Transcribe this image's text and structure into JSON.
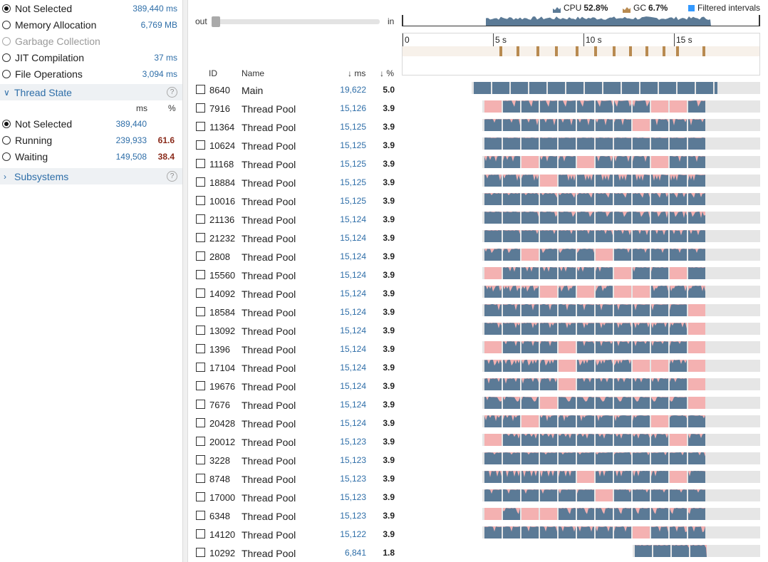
{
  "filters_top": [
    {
      "label": "Not Selected",
      "value": "389,440 ms",
      "checked": true,
      "disabled": false
    },
    {
      "label": "Memory Allocation",
      "value": "6,769 MB",
      "checked": false,
      "disabled": false
    },
    {
      "label": "Garbage Collection",
      "value": "",
      "checked": false,
      "disabled": true
    },
    {
      "label": "JIT Compilation",
      "value": "37 ms",
      "checked": false,
      "disabled": false
    },
    {
      "label": "File Operations",
      "value": "3,094 ms",
      "checked": false,
      "disabled": false
    }
  ],
  "thread_state": {
    "title": "Thread State",
    "help": "?",
    "col_ms": "ms",
    "col_pct": "%",
    "items": [
      {
        "label": "Not Selected",
        "ms": "389,440",
        "pct": "",
        "checked": true
      },
      {
        "label": "Running",
        "ms": "239,933",
        "pct": "61.6",
        "checked": false
      },
      {
        "label": "Waiting",
        "ms": "149,508",
        "pct": "38.4",
        "checked": false
      }
    ]
  },
  "subsystems": {
    "title": "Subsystems",
    "help": "?"
  },
  "zoom": {
    "out_label": "out",
    "in_label": "in"
  },
  "legend": {
    "cpu_label": "CPU",
    "cpu_value": "52.8%",
    "cpu_color": "#5b7a96",
    "gc_label": "GC",
    "gc_value": "6.7%",
    "gc_color": "#b88a50",
    "filtered_label": "Filtered intervals",
    "filtered_color": "#3399ff"
  },
  "ruler_ticks": [
    "0",
    "5 s",
    "10 s",
    "15 s"
  ],
  "table_headers": {
    "id": "ID",
    "name": "Name",
    "ms": "↓ ms",
    "pct": "↓ %"
  },
  "threads": [
    {
      "id": "8640",
      "name": "Main",
      "ms": "19,622",
      "pct": "5.0",
      "start": 0.2,
      "end": 0.88
    },
    {
      "id": "7916",
      "name": "Thread Pool",
      "ms": "15,126",
      "pct": "3.9",
      "start": 0.23,
      "end": 0.85
    },
    {
      "id": "11364",
      "name": "Thread Pool",
      "ms": "15,125",
      "pct": "3.9",
      "start": 0.23,
      "end": 0.85
    },
    {
      "id": "10624",
      "name": "Thread Pool",
      "ms": "15,125",
      "pct": "3.9",
      "start": 0.23,
      "end": 0.85
    },
    {
      "id": "11168",
      "name": "Thread Pool",
      "ms": "15,125",
      "pct": "3.9",
      "start": 0.23,
      "end": 0.85
    },
    {
      "id": "18884",
      "name": "Thread Pool",
      "ms": "15,125",
      "pct": "3.9",
      "start": 0.23,
      "end": 0.85
    },
    {
      "id": "10016",
      "name": "Thread Pool",
      "ms": "15,125",
      "pct": "3.9",
      "start": 0.23,
      "end": 0.85
    },
    {
      "id": "21136",
      "name": "Thread Pool",
      "ms": "15,124",
      "pct": "3.9",
      "start": 0.23,
      "end": 0.85
    },
    {
      "id": "21232",
      "name": "Thread Pool",
      "ms": "15,124",
      "pct": "3.9",
      "start": 0.23,
      "end": 0.85
    },
    {
      "id": "2808",
      "name": "Thread Pool",
      "ms": "15,124",
      "pct": "3.9",
      "start": 0.23,
      "end": 0.85
    },
    {
      "id": "15560",
      "name": "Thread Pool",
      "ms": "15,124",
      "pct": "3.9",
      "start": 0.23,
      "end": 0.85
    },
    {
      "id": "14092",
      "name": "Thread Pool",
      "ms": "15,124",
      "pct": "3.9",
      "start": 0.23,
      "end": 0.85
    },
    {
      "id": "18584",
      "name": "Thread Pool",
      "ms": "15,124",
      "pct": "3.9",
      "start": 0.23,
      "end": 0.85
    },
    {
      "id": "13092",
      "name": "Thread Pool",
      "ms": "15,124",
      "pct": "3.9",
      "start": 0.23,
      "end": 0.85
    },
    {
      "id": "1396",
      "name": "Thread Pool",
      "ms": "15,124",
      "pct": "3.9",
      "start": 0.23,
      "end": 0.85
    },
    {
      "id": "17104",
      "name": "Thread Pool",
      "ms": "15,124",
      "pct": "3.9",
      "start": 0.23,
      "end": 0.85
    },
    {
      "id": "19676",
      "name": "Thread Pool",
      "ms": "15,124",
      "pct": "3.9",
      "start": 0.23,
      "end": 0.85
    },
    {
      "id": "7676",
      "name": "Thread Pool",
      "ms": "15,124",
      "pct": "3.9",
      "start": 0.23,
      "end": 0.85
    },
    {
      "id": "20428",
      "name": "Thread Pool",
      "ms": "15,124",
      "pct": "3.9",
      "start": 0.23,
      "end": 0.85
    },
    {
      "id": "20012",
      "name": "Thread Pool",
      "ms": "15,123",
      "pct": "3.9",
      "start": 0.23,
      "end": 0.85
    },
    {
      "id": "3228",
      "name": "Thread Pool",
      "ms": "15,123",
      "pct": "3.9",
      "start": 0.23,
      "end": 0.85
    },
    {
      "id": "8748",
      "name": "Thread Pool",
      "ms": "15,123",
      "pct": "3.9",
      "start": 0.23,
      "end": 0.85
    },
    {
      "id": "17000",
      "name": "Thread Pool",
      "ms": "15,123",
      "pct": "3.9",
      "start": 0.23,
      "end": 0.85
    },
    {
      "id": "6348",
      "name": "Thread Pool",
      "ms": "15,123",
      "pct": "3.9",
      "start": 0.23,
      "end": 0.85
    },
    {
      "id": "14120",
      "name": "Thread Pool",
      "ms": "15,122",
      "pct": "3.9",
      "start": 0.23,
      "end": 0.85
    },
    {
      "id": "10292",
      "name": "Thread Pool",
      "ms": "6,841",
      "pct": "1.8",
      "start": 0.65,
      "end": 0.85
    }
  ]
}
